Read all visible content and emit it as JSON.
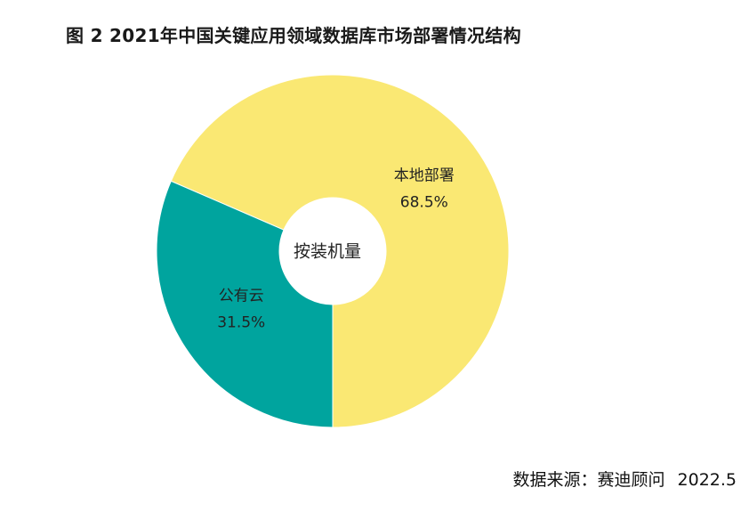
{
  "chart_data": {
    "type": "pie",
    "title": "图 2  2021年中国关键应用领域数据库市场部署情况结构",
    "center_label": "按装机量",
    "slices": [
      {
        "label": "本地部署",
        "value": 68.5,
        "value_label": "68.5%",
        "color": "#FAE873"
      },
      {
        "label": "公有云",
        "value": 31.5,
        "value_label": "31.5%",
        "color": "#00A49E"
      }
    ]
  },
  "source": {
    "text": "数据来源：赛迪顾问",
    "date": "2022.5"
  }
}
